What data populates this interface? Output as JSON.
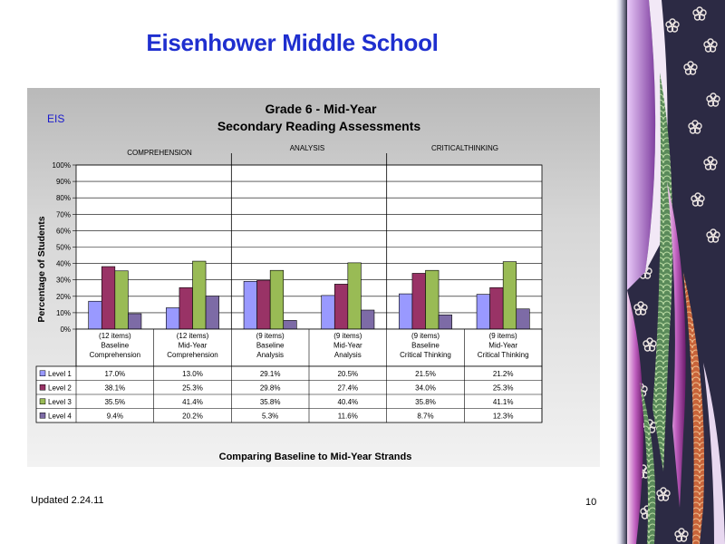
{
  "slide": {
    "title": "Eisenhower Middle School",
    "footer_left": "Updated  2.24.11",
    "page_number": "10"
  },
  "chart_data": {
    "type": "bar",
    "corner_label": "EIS",
    "title": "Grade 6 - Mid-Year",
    "subtitle": "Secondary Reading Assessments",
    "ylabel": "Percentage of Students",
    "xlabel": "Comparing Baseline to Mid-Year Strands",
    "ylim": [
      0,
      100
    ],
    "y_ticks": [
      "0%",
      "10%",
      "20%",
      "30%",
      "40%",
      "50%",
      "60%",
      "70%",
      "80%",
      "90%",
      "100%"
    ],
    "grid": true,
    "strands": [
      "COMPREHENSION",
      "ANALYSIS",
      "CRITICALTHINKING"
    ],
    "categories": [
      [
        "(12 items)",
        "Baseline",
        "Comprehension"
      ],
      [
        "(12 items)",
        "Mid-Year",
        "Comprehension"
      ],
      [
        "(9 items)",
        "Baseline",
        "Analysis"
      ],
      [
        "(9 items)",
        "Mid-Year",
        "Analysis"
      ],
      [
        "(9 items)",
        "Baseline",
        "Critical Thinking"
      ],
      [
        "(9 items)",
        "Mid-Year",
        "Critical Thinking"
      ]
    ],
    "series": [
      {
        "name": "Level 1",
        "color": "#9999ff",
        "values": [
          17.0,
          13.0,
          29.1,
          20.5,
          21.5,
          21.2
        ],
        "labels": [
          "17.0%",
          "13.0%",
          "29.1%",
          "20.5%",
          "21.5%",
          "21.2%"
        ]
      },
      {
        "name": "Level 2",
        "color": "#993366",
        "values": [
          38.1,
          25.3,
          29.8,
          27.4,
          34.0,
          25.3
        ],
        "labels": [
          "38.1%",
          "25.3%",
          "29.8%",
          "27.4%",
          "34.0%",
          "25.3%"
        ]
      },
      {
        "name": "Level 3",
        "color": "#99bb55",
        "values": [
          35.5,
          41.4,
          35.8,
          40.4,
          35.8,
          41.1
        ],
        "labels": [
          "35.5%",
          "41.4%",
          "35.8%",
          "40.4%",
          "35.8%",
          "41.1%"
        ]
      },
      {
        "name": "Level 4",
        "color": "#7d6ba6",
        "values": [
          9.4,
          20.2,
          5.3,
          11.6,
          8.7,
          12.3
        ],
        "labels": [
          "9.4%",
          "20.2%",
          "5.3%",
          "11.6%",
          "8.7%",
          "12.3%"
        ]
      }
    ]
  }
}
